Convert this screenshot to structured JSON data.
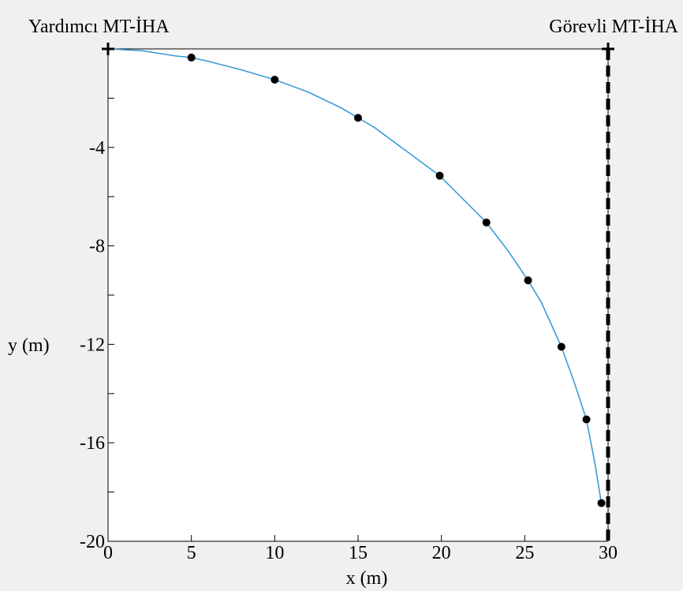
{
  "chart_data": {
    "type": "line",
    "title": "",
    "xlabel": "x (m)",
    "ylabel": "y (m)",
    "xlim": [
      0,
      30
    ],
    "ylim": [
      -20,
      0
    ],
    "xticks": [
      0,
      5,
      10,
      15,
      20,
      25,
      30
    ],
    "yticks": [
      -20,
      -16,
      -12,
      -8,
      -4
    ],
    "grid": false,
    "series": [
      {
        "kind": "curve",
        "color": "#3c9bd6",
        "x": [
          0,
          2,
          4,
          5,
          6,
          8,
          10,
          12,
          14,
          15,
          16,
          18,
          19.9,
          21,
          22.7,
          24,
          25.2,
          26,
          27.2,
          28,
          28.7,
          29.2,
          29.6
        ],
        "y": [
          0,
          -0.07,
          -0.28,
          -0.35,
          -0.5,
          -0.85,
          -1.25,
          -1.75,
          -2.4,
          -2.8,
          -3.2,
          -4.2,
          -5.15,
          -5.9,
          -7.05,
          -8.2,
          -9.4,
          -10.3,
          -12.1,
          -13.6,
          -15.05,
          -16.8,
          -18.45
        ]
      },
      {
        "kind": "markers",
        "color": "#000000",
        "x": [
          5,
          10,
          15,
          19.9,
          22.7,
          25.2,
          27.2,
          28.7,
          29.6
        ],
        "y": [
          -0.35,
          -1.25,
          -2.8,
          -5.15,
          -7.05,
          -9.4,
          -12.1,
          -15.05,
          -18.45
        ]
      }
    ],
    "annotations": [
      {
        "label": "Yardımcı MT-İHA",
        "x": 0,
        "y": 0,
        "marker": "plus"
      },
      {
        "label": "Görevli MT-İHA",
        "x": 30,
        "y": 0,
        "marker": "plus"
      }
    ],
    "reference_line": {
      "style": "dashed",
      "x": 30,
      "color": "#000000"
    }
  }
}
